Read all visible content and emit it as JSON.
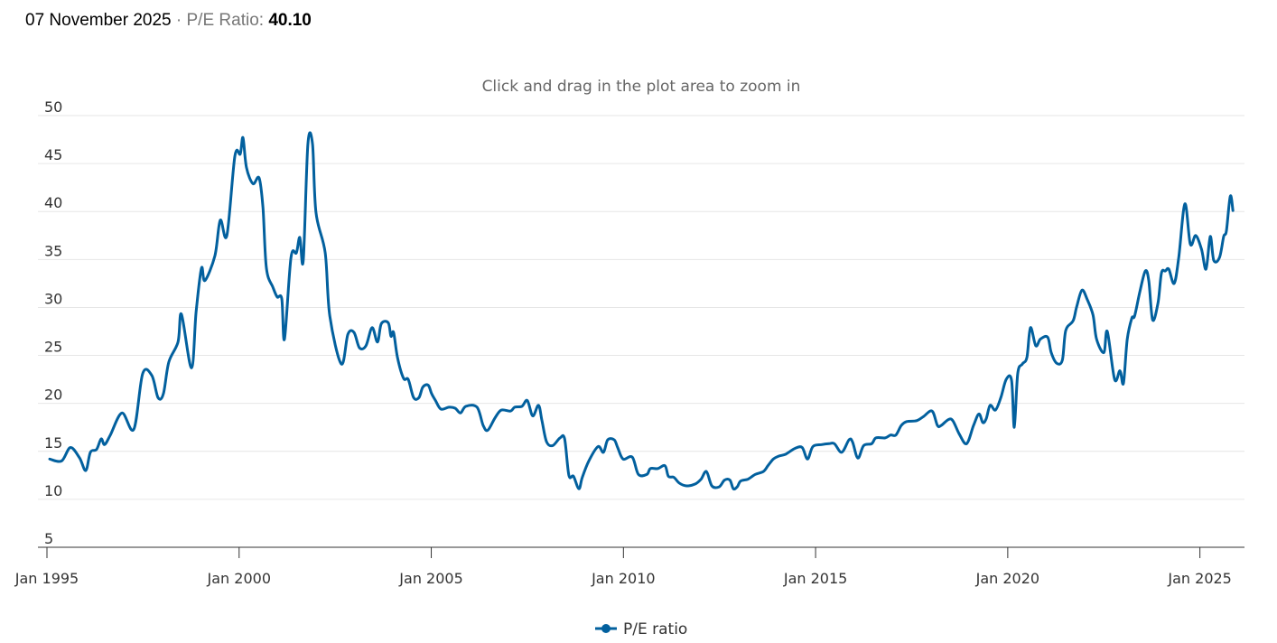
{
  "header": {
    "date": "07 November 2025",
    "separator": "·",
    "metric_label": "P/E Ratio:",
    "metric_value": "40.10"
  },
  "colors": {
    "line": "#02609e",
    "grid": "#e6e6e6",
    "axis": "#333333",
    "hint": "#666666"
  },
  "chart_data": {
    "type": "line",
    "subtitle": "Click and drag in the plot area to zoom in",
    "xlabel": "",
    "ylabel": "",
    "xlim": [
      1995,
      2026.16
    ],
    "ylim": [
      5,
      50
    ],
    "yticks": [
      5,
      10,
      15,
      20,
      25,
      30,
      35,
      40,
      45,
      50
    ],
    "xticks": [
      {
        "value": 1995,
        "label": "Jan 1995"
      },
      {
        "value": 2000,
        "label": "Jan 2000"
      },
      {
        "value": 2005,
        "label": "Jan 2005"
      },
      {
        "value": 2010,
        "label": "Jan 2010"
      },
      {
        "value": 2015,
        "label": "Jan 2015"
      },
      {
        "value": 2020,
        "label": "Jan 2020"
      },
      {
        "value": 2025,
        "label": "Jan 2025"
      }
    ],
    "grid": true,
    "legend": {
      "position": "bottom-center",
      "entries": [
        "P/E ratio"
      ]
    },
    "series": [
      {
        "name": "P/E ratio",
        "points": [
          [
            1995.07,
            14.2
          ],
          [
            1995.38,
            14.0
          ],
          [
            1995.61,
            15.4
          ],
          [
            1995.85,
            14.3
          ],
          [
            1996.01,
            13.0
          ],
          [
            1996.13,
            14.9
          ],
          [
            1996.29,
            15.2
          ],
          [
            1996.41,
            16.3
          ],
          [
            1996.5,
            15.7
          ],
          [
            1996.65,
            16.7
          ],
          [
            1996.95,
            19.0
          ],
          [
            1997.26,
            17.3
          ],
          [
            1997.49,
            23.1
          ],
          [
            1997.73,
            22.9
          ],
          [
            1997.89,
            20.6
          ],
          [
            1998.03,
            21.0
          ],
          [
            1998.17,
            24.3
          ],
          [
            1998.41,
            26.4
          ],
          [
            1998.5,
            29.3
          ],
          [
            1998.76,
            23.7
          ],
          [
            1998.88,
            29.5
          ],
          [
            1999.02,
            34.1
          ],
          [
            1999.11,
            32.8
          ],
          [
            1999.37,
            35.4
          ],
          [
            1999.51,
            39.1
          ],
          [
            1999.68,
            37.5
          ],
          [
            1999.89,
            45.8
          ],
          [
            2000.03,
            46.0
          ],
          [
            2000.1,
            47.7
          ],
          [
            2000.19,
            44.6
          ],
          [
            2000.36,
            42.9
          ],
          [
            2000.52,
            43.5
          ],
          [
            2000.62,
            40.4
          ],
          [
            2000.71,
            34.1
          ],
          [
            2000.88,
            32.1
          ],
          [
            2000.99,
            31.1
          ],
          [
            2001.11,
            30.9
          ],
          [
            2001.18,
            26.7
          ],
          [
            2001.35,
            35.2
          ],
          [
            2001.49,
            35.7
          ],
          [
            2001.58,
            37.3
          ],
          [
            2001.67,
            34.9
          ],
          [
            2001.79,
            47.0
          ],
          [
            2001.91,
            47.0
          ],
          [
            2002.0,
            39.9
          ],
          [
            2002.24,
            35.7
          ],
          [
            2002.36,
            29.1
          ],
          [
            2002.66,
            24.1
          ],
          [
            2002.83,
            27.2
          ],
          [
            2002.99,
            27.4
          ],
          [
            2003.13,
            25.8
          ],
          [
            2003.3,
            26.0
          ],
          [
            2003.46,
            27.9
          ],
          [
            2003.6,
            26.4
          ],
          [
            2003.7,
            28.3
          ],
          [
            2003.88,
            28.4
          ],
          [
            2003.95,
            27.0
          ],
          [
            2004.02,
            27.4
          ],
          [
            2004.12,
            24.8
          ],
          [
            2004.28,
            22.6
          ],
          [
            2004.4,
            22.5
          ],
          [
            2004.54,
            20.6
          ],
          [
            2004.68,
            20.6
          ],
          [
            2004.78,
            21.7
          ],
          [
            2004.92,
            21.9
          ],
          [
            2005.01,
            21.0
          ],
          [
            2005.11,
            20.3
          ],
          [
            2005.25,
            19.4
          ],
          [
            2005.46,
            19.6
          ],
          [
            2005.62,
            19.5
          ],
          [
            2005.76,
            19.0
          ],
          [
            2005.9,
            19.7
          ],
          [
            2006.19,
            19.6
          ],
          [
            2006.35,
            17.7
          ],
          [
            2006.47,
            17.2
          ],
          [
            2006.66,
            18.5
          ],
          [
            2006.82,
            19.3
          ],
          [
            2007.06,
            19.2
          ],
          [
            2007.17,
            19.6
          ],
          [
            2007.36,
            19.7
          ],
          [
            2007.5,
            20.3
          ],
          [
            2007.64,
            18.7
          ],
          [
            2007.79,
            19.8
          ],
          [
            2007.88,
            18.2
          ],
          [
            2008.0,
            16.0
          ],
          [
            2008.16,
            15.6
          ],
          [
            2008.35,
            16.4
          ],
          [
            2008.47,
            16.3
          ],
          [
            2008.58,
            12.5
          ],
          [
            2008.7,
            12.4
          ],
          [
            2008.84,
            11.1
          ],
          [
            2008.93,
            12.3
          ],
          [
            2009.1,
            14.0
          ],
          [
            2009.34,
            15.5
          ],
          [
            2009.48,
            14.9
          ],
          [
            2009.59,
            16.2
          ],
          [
            2009.76,
            16.2
          ],
          [
            2009.85,
            15.4
          ],
          [
            2009.99,
            14.2
          ],
          [
            2010.23,
            14.4
          ],
          [
            2010.39,
            12.6
          ],
          [
            2010.61,
            12.6
          ],
          [
            2010.7,
            13.2
          ],
          [
            2010.89,
            13.2
          ],
          [
            2011.08,
            13.5
          ],
          [
            2011.17,
            12.4
          ],
          [
            2011.31,
            12.3
          ],
          [
            2011.45,
            11.7
          ],
          [
            2011.64,
            11.4
          ],
          [
            2011.87,
            11.6
          ],
          [
            2012.02,
            12.1
          ],
          [
            2012.16,
            12.9
          ],
          [
            2012.3,
            11.4
          ],
          [
            2012.49,
            11.3
          ],
          [
            2012.63,
            12.0
          ],
          [
            2012.77,
            12.0
          ],
          [
            2012.86,
            11.1
          ],
          [
            2012.96,
            11.3
          ],
          [
            2013.05,
            11.9
          ],
          [
            2013.24,
            12.1
          ],
          [
            2013.43,
            12.6
          ],
          [
            2013.64,
            12.9
          ],
          [
            2013.76,
            13.5
          ],
          [
            2013.9,
            14.2
          ],
          [
            2014.04,
            14.5
          ],
          [
            2014.22,
            14.7
          ],
          [
            2014.46,
            15.3
          ],
          [
            2014.65,
            15.4
          ],
          [
            2014.79,
            14.2
          ],
          [
            2014.93,
            15.5
          ],
          [
            2015.16,
            15.7
          ],
          [
            2015.35,
            15.8
          ],
          [
            2015.49,
            15.8
          ],
          [
            2015.68,
            14.9
          ],
          [
            2015.87,
            16.2
          ],
          [
            2015.96,
            16.0
          ],
          [
            2016.1,
            14.3
          ],
          [
            2016.25,
            15.6
          ],
          [
            2016.46,
            15.8
          ],
          [
            2016.57,
            16.4
          ],
          [
            2016.81,
            16.4
          ],
          [
            2016.95,
            16.7
          ],
          [
            2017.09,
            16.7
          ],
          [
            2017.23,
            17.7
          ],
          [
            2017.37,
            18.1
          ],
          [
            2017.63,
            18.2
          ],
          [
            2017.8,
            18.6
          ],
          [
            2018.03,
            19.2
          ],
          [
            2018.17,
            17.7
          ],
          [
            2018.27,
            17.7
          ],
          [
            2018.45,
            18.3
          ],
          [
            2018.57,
            18.2
          ],
          [
            2018.74,
            16.8
          ],
          [
            2018.93,
            15.8
          ],
          [
            2019.11,
            17.7
          ],
          [
            2019.25,
            18.9
          ],
          [
            2019.35,
            18.0
          ],
          [
            2019.44,
            18.4
          ],
          [
            2019.54,
            19.8
          ],
          [
            2019.68,
            19.3
          ],
          [
            2019.82,
            20.6
          ],
          [
            2019.96,
            22.5
          ],
          [
            2020.1,
            22.4
          ],
          [
            2020.17,
            17.5
          ],
          [
            2020.26,
            23.1
          ],
          [
            2020.38,
            24.1
          ],
          [
            2020.5,
            24.8
          ],
          [
            2020.59,
            27.9
          ],
          [
            2020.73,
            26.0
          ],
          [
            2020.85,
            26.7
          ],
          [
            2021.04,
            26.9
          ],
          [
            2021.13,
            25.3
          ],
          [
            2021.27,
            24.2
          ],
          [
            2021.42,
            24.5
          ],
          [
            2021.51,
            27.6
          ],
          [
            2021.7,
            28.6
          ],
          [
            2021.79,
            30.0
          ],
          [
            2021.93,
            31.8
          ],
          [
            2022.07,
            30.8
          ],
          [
            2022.22,
            29.2
          ],
          [
            2022.31,
            26.7
          ],
          [
            2022.5,
            25.3
          ],
          [
            2022.59,
            27.5
          ],
          [
            2022.78,
            22.5
          ],
          [
            2022.92,
            23.4
          ],
          [
            2023.01,
            22.1
          ],
          [
            2023.11,
            26.7
          ],
          [
            2023.23,
            28.9
          ],
          [
            2023.3,
            29.1
          ],
          [
            2023.44,
            31.7
          ],
          [
            2023.58,
            33.8
          ],
          [
            2023.67,
            32.8
          ],
          [
            2023.77,
            28.7
          ],
          [
            2023.91,
            30.5
          ],
          [
            2024.0,
            33.6
          ],
          [
            2024.1,
            33.8
          ],
          [
            2024.19,
            34.0
          ],
          [
            2024.33,
            32.5
          ],
          [
            2024.45,
            35.2
          ],
          [
            2024.61,
            40.8
          ],
          [
            2024.75,
            36.6
          ],
          [
            2024.89,
            37.5
          ],
          [
            2025.04,
            36.1
          ],
          [
            2025.16,
            34.0
          ],
          [
            2025.27,
            37.4
          ],
          [
            2025.36,
            34.9
          ],
          [
            2025.51,
            35.2
          ],
          [
            2025.62,
            37.4
          ],
          [
            2025.69,
            38.0
          ],
          [
            2025.79,
            41.6
          ],
          [
            2025.86,
            40.1
          ]
        ]
      }
    ]
  }
}
